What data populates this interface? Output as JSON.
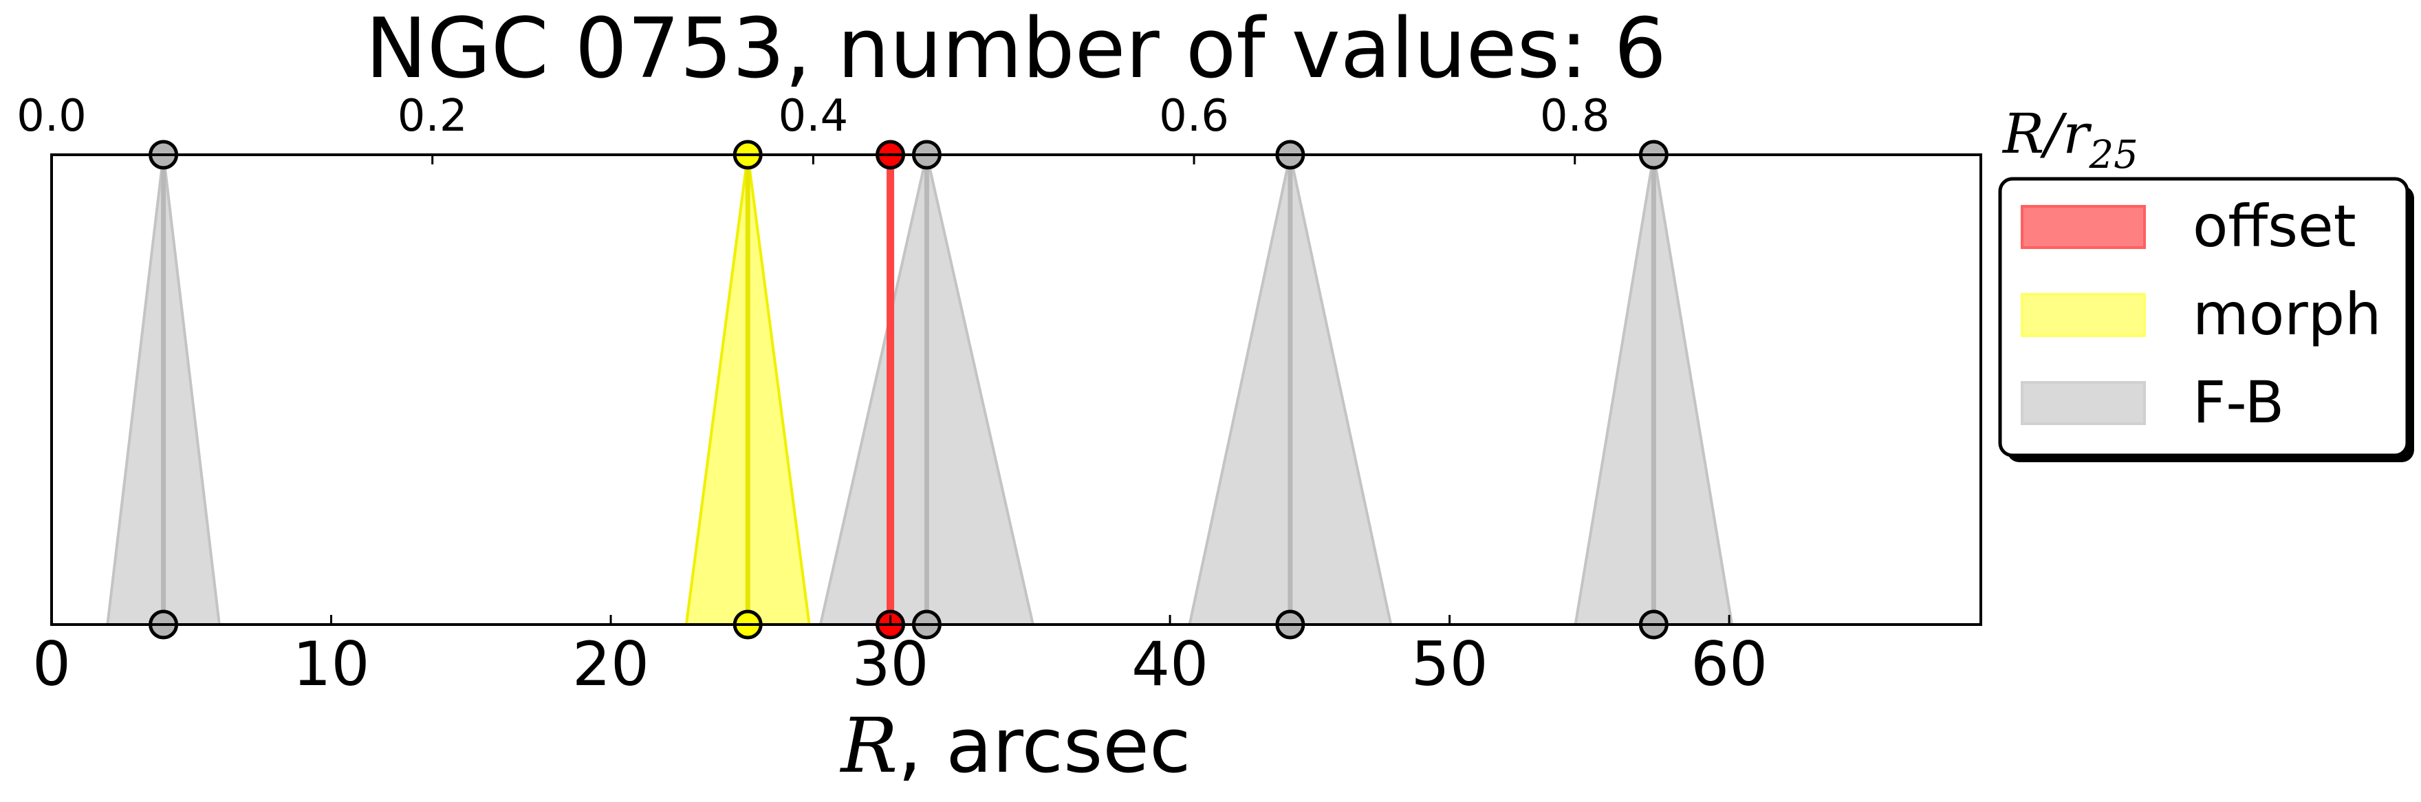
{
  "chart_data": {
    "type": "line",
    "title": "NGC 0753, number of values: 6",
    "xlabel_var": "R",
    "xlabel_rest": ", arcsec",
    "xlim": [
      0,
      69
    ],
    "xticks": [
      0,
      10,
      20,
      30,
      40,
      50,
      60
    ],
    "top_axis": {
      "label_var": "R/r",
      "label_sub": "25",
      "ticks": [
        "0.0",
        "0.2",
        "0.4",
        "0.6",
        "0.8"
      ],
      "tick_values": [
        0.0,
        0.2,
        0.4,
        0.6,
        0.8
      ],
      "r25_arcsec": 68.1
    },
    "grid": false,
    "legend_position": "right, outside plot",
    "series": [
      {
        "name": "offset",
        "color": "#ff0000",
        "values": [
          {
            "x": 30.0,
            "err": 0.0
          }
        ]
      },
      {
        "name": "morph",
        "color": "#ffff00",
        "values": [
          {
            "x": 24.9,
            "err": 2.2
          }
        ]
      },
      {
        "name": "F-B",
        "color": "#b0b0b0",
        "values": [
          {
            "x": 4.0,
            "err": 2.0
          },
          {
            "x": 31.3,
            "err": 3.8
          },
          {
            "x": 44.3,
            "err": 3.6
          },
          {
            "x": 57.3,
            "err": 2.8
          }
        ]
      }
    ],
    "legend": [
      {
        "label": "offset",
        "color": "#ff6060"
      },
      {
        "label": "morph",
        "color": "#ffff66"
      },
      {
        "label": "F-B",
        "color": "#d0d0d0"
      }
    ]
  }
}
